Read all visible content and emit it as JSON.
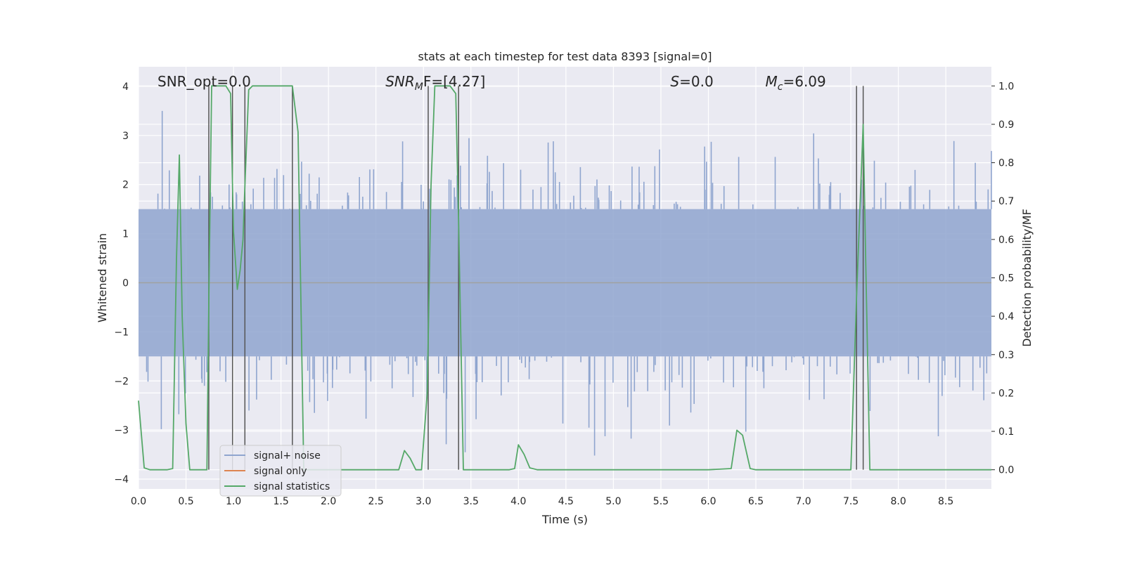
{
  "chart_data": {
    "type": "line",
    "title": "stats at each timestep for test data 8393 [signal=0]",
    "xlabel": "Time (s)",
    "ylabel": "Whitened strain",
    "y2label": "Detection probability/MF",
    "xlim": [
      0.0,
      8.98
    ],
    "ylim": [
      -4.2,
      4.4
    ],
    "y2lim": [
      -0.05,
      1.05
    ],
    "xticks": [
      0.0,
      0.5,
      1.0,
      1.5,
      2.0,
      2.5,
      3.0,
      3.5,
      4.0,
      4.5,
      5.0,
      5.5,
      6.0,
      6.5,
      7.0,
      7.5,
      8.0,
      8.5
    ],
    "xtick_labels": [
      "0.0",
      "0.5",
      "1.0",
      "1.5",
      "2.0",
      "2.5",
      "3.0",
      "3.5",
      "4.0",
      "4.5",
      "5.0",
      "5.5",
      "6.0",
      "6.5",
      "7.0",
      "7.5",
      "8.0",
      "8.5"
    ],
    "yticks": [
      -4,
      -3,
      -2,
      -1,
      0,
      1,
      2,
      3,
      4
    ],
    "ytick_labels": [
      "−4",
      "−3",
      "−2",
      "−1",
      "0",
      "1",
      "2",
      "3",
      "4"
    ],
    "y2ticks": [
      0.0,
      0.1,
      0.2,
      0.3,
      0.4,
      0.5,
      0.6,
      0.7,
      0.8,
      0.9,
      1.0
    ],
    "y2tick_labels": [
      "0.0",
      "0.1",
      "0.2",
      "0.3",
      "0.4",
      "0.5",
      "0.6",
      "0.7",
      "0.8",
      "0.9",
      "1.0"
    ],
    "grid": true,
    "legend_position": "lower-left",
    "annotations": [
      {
        "text": "SNR_opt=0.0",
        "x": 0.2,
        "y": 4.1
      },
      {
        "text": "SNR_MF=[4.27]",
        "x": 2.6,
        "y": 4.1
      },
      {
        "text": "S=0.0",
        "x": 5.6,
        "y": 4.1
      },
      {
        "text": "M_c=6.09",
        "x": 6.6,
        "y": 4.1
      }
    ],
    "annotation_parts": [
      {
        "main": "SNR_opt=0.0",
        "sub": "",
        "rest": ""
      },
      {
        "main": "SNR",
        "sub": "M",
        "rest": "F=[4.27]"
      },
      {
        "main": "S",
        "sub": "",
        "rest": "=0.0"
      },
      {
        "main": "M",
        "sub": "c",
        "rest": "=6.09"
      }
    ],
    "vlines": [
      0.74,
      0.99,
      1.12,
      1.62,
      3.05,
      3.37,
      7.56,
      7.63
    ],
    "series": [
      {
        "name": "signal+ noise",
        "color": "#8fa5cf",
        "kind": "noise",
        "envelope": 1.5,
        "peak_max": 3.5,
        "peak_min": -3.9,
        "samples": 1800
      },
      {
        "name": "signal only",
        "color": "#dd8452",
        "kind": "line",
        "axis": "left",
        "x": [
          0.0,
          8.98
        ],
        "y": [
          0.0,
          0.0
        ]
      },
      {
        "name": "signal statistics",
        "color": "#55a868",
        "kind": "line",
        "axis": "right",
        "x": [
          0.0,
          0.06,
          0.12,
          0.18,
          0.24,
          0.3,
          0.36,
          0.4,
          0.43,
          0.46,
          0.5,
          0.54,
          0.6,
          0.66,
          0.72,
          0.74,
          0.77,
          0.8,
          0.86,
          0.92,
          0.97,
          1.0,
          1.04,
          1.07,
          1.1,
          1.12,
          1.16,
          1.2,
          1.26,
          1.32,
          1.4,
          1.5,
          1.58,
          1.62,
          1.68,
          1.74,
          1.8,
          1.9,
          2.0,
          2.2,
          2.4,
          2.6,
          2.74,
          2.8,
          2.86,
          2.92,
          2.98,
          3.04,
          3.08,
          3.12,
          3.2,
          3.28,
          3.34,
          3.37,
          3.42,
          3.5,
          3.6,
          3.8,
          3.9,
          3.96,
          4.0,
          4.06,
          4.12,
          4.2,
          4.4,
          4.8,
          5.2,
          5.6,
          6.0,
          6.24,
          6.3,
          6.36,
          6.44,
          6.5,
          6.6,
          7.0,
          7.4,
          7.5,
          7.56,
          7.63,
          7.66,
          7.7,
          7.8,
          8.2,
          8.6,
          8.98
        ],
        "y": [
          0.18,
          0.005,
          0.0,
          0.0,
          0.0,
          0.0,
          0.003,
          0.55,
          0.82,
          0.4,
          0.12,
          0.0,
          0.0,
          0.0,
          0.0,
          0.44,
          1.0,
          1.0,
          1.0,
          1.0,
          0.98,
          0.62,
          0.47,
          0.52,
          0.6,
          0.74,
          0.99,
          1.0,
          1.0,
          1.0,
          1.0,
          1.0,
          1.0,
          1.0,
          0.88,
          0.0,
          0.0,
          0.0,
          0.0,
          0.0,
          0.0,
          0.0,
          0.0,
          0.05,
          0.03,
          0.0,
          0.0,
          0.2,
          0.74,
          1.0,
          1.0,
          1.0,
          0.98,
          0.65,
          0.0,
          0.0,
          0.0,
          0.0,
          0.0,
          0.003,
          0.065,
          0.04,
          0.005,
          0.0,
          0.0,
          0.0,
          0.0,
          0.0,
          0.0,
          0.003,
          0.103,
          0.09,
          0.003,
          0.0,
          0.0,
          0.0,
          0.0,
          0.0,
          0.45,
          0.9,
          0.5,
          0.0,
          0.0,
          0.0,
          0.0,
          0.0
        ]
      }
    ]
  },
  "colors": {
    "plot_background": "#eaeaf2",
    "grid": "#ffffff",
    "vline": "#555555",
    "text": "#262626"
  }
}
